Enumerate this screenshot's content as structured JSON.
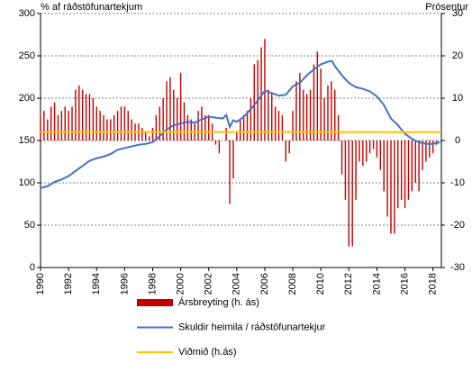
{
  "chart_data": {
    "type": "bar_line_dual",
    "y_label": "% af ráðstöfunartekjum",
    "y2_label": "Prósentur",
    "xlim": [
      1990,
      2018.6
    ],
    "xticks": [
      1990,
      1992,
      1994,
      1996,
      1998,
      2000,
      2002,
      2004,
      2006,
      2008,
      2010,
      2012,
      2014,
      2016,
      2018
    ],
    "ylim": [
      0,
      300
    ],
    "yticks": [
      0,
      50,
      100,
      150,
      200,
      250,
      300
    ],
    "y2lim": [
      -30,
      30
    ],
    "y2ticks": [
      -30,
      -20,
      -10,
      0,
      10,
      20,
      30
    ],
    "grid": true,
    "series": [
      {
        "name": "Ársbreyting (h. ás)",
        "type": "bar",
        "axis": "y2",
        "color": "#c00000",
        "x": [
          1990,
          1990.25,
          1990.5,
          1990.75,
          1991,
          1991.25,
          1991.5,
          1991.75,
          1992,
          1992.25,
          1992.5,
          1992.75,
          1993,
          1993.25,
          1993.5,
          1993.75,
          1994,
          1994.25,
          1994.5,
          1994.75,
          1995,
          1995.25,
          1995.5,
          1995.75,
          1996,
          1996.25,
          1996.5,
          1996.75,
          1997,
          1997.25,
          1997.5,
          1997.75,
          1998,
          1998.25,
          1998.5,
          1998.75,
          1999,
          1999.25,
          1999.5,
          1999.75,
          2000,
          2000.25,
          2000.5,
          2000.75,
          2001,
          2001.25,
          2001.5,
          2001.75,
          2002,
          2002.25,
          2002.5,
          2002.75,
          2003,
          2003.25,
          2003.5,
          2003.75,
          2004,
          2004.25,
          2004.5,
          2004.75,
          2005,
          2005.25,
          2005.5,
          2005.75,
          2006,
          2006.25,
          2006.5,
          2006.75,
          2007,
          2007.25,
          2007.5,
          2007.75,
          2008,
          2008.25,
          2008.5,
          2008.75,
          2009,
          2009.25,
          2009.5,
          2009.75,
          2010,
          2010.25,
          2010.5,
          2010.75,
          2011,
          2011.25,
          2011.5,
          2011.75,
          2012,
          2012.25,
          2012.5,
          2012.75,
          2013,
          2013.25,
          2013.5,
          2013.75,
          2014,
          2014.25,
          2014.5,
          2014.75,
          2015,
          2015.25,
          2015.5,
          2015.75,
          2016,
          2016.25,
          2016.5,
          2016.75,
          2017,
          2017.25,
          2017.5,
          2017.75,
          2018,
          2018.25
        ],
        "values": [
          6,
          7,
          5,
          8,
          9,
          6,
          7,
          8,
          7,
          8,
          12,
          13,
          12,
          11,
          11,
          10,
          8,
          7,
          6,
          5,
          5,
          6,
          7,
          8,
          8,
          7,
          5,
          4,
          4,
          3,
          2,
          1,
          3,
          6,
          8,
          10,
          14,
          15,
          12,
          10,
          16,
          9,
          6,
          5,
          4,
          7,
          8,
          6,
          6,
          4,
          -1,
          -3,
          0,
          3,
          -15,
          -9,
          2,
          5,
          6,
          7,
          10,
          18,
          19,
          22,
          24,
          12,
          11,
          8,
          7,
          6,
          -5,
          -3,
          7,
          14,
          16,
          12,
          11,
          12,
          18,
          21,
          17,
          10,
          13,
          14,
          12,
          6,
          -8,
          -14,
          -25,
          -25,
          -14,
          -5,
          -6,
          -5,
          -3,
          -2,
          -4,
          -7,
          -12,
          -18,
          -22,
          -22,
          -16,
          -14,
          -16,
          -14,
          -12,
          -10,
          -12,
          -7,
          -5,
          -4,
          -3,
          -1
        ]
      },
      {
        "name": "Skuldir heimila / ráðstöfunartekjur",
        "type": "line",
        "axis": "y",
        "color": "#4472c4",
        "x": [
          1990,
          1990.5,
          1991,
          1991.5,
          1992,
          1992.5,
          1993,
          1993.5,
          1994,
          1994.5,
          1995,
          1995.5,
          1996,
          1996.5,
          1997,
          1997.5,
          1998,
          1998.5,
          1999,
          1999.5,
          2000,
          2000.5,
          2001,
          2001.5,
          2002,
          2002.5,
          2003,
          2003.25,
          2003.5,
          2003.75,
          2004,
          2004.5,
          2005,
          2005.5,
          2006,
          2006.5,
          2007,
          2007.5,
          2008,
          2008.5,
          2009,
          2009.5,
          2010,
          2010.5,
          2010.8,
          2011,
          2011.5,
          2012,
          2012.5,
          2013,
          2013.5,
          2014,
          2014.5,
          2015,
          2015.5,
          2016,
          2016.5,
          2017,
          2017.5,
          2018,
          2018.5
        ],
        "values": [
          94,
          96,
          101,
          104,
          108,
          114,
          120,
          126,
          129,
          131,
          134,
          139,
          141,
          143,
          145,
          146,
          148,
          155,
          163,
          168,
          170,
          172,
          171,
          175,
          178,
          177,
          176,
          180,
          166,
          174,
          172,
          178,
          187,
          197,
          209,
          206,
          203,
          204,
          214,
          218,
          227,
          234,
          240,
          243,
          244,
          238,
          227,
          218,
          213,
          211,
          208,
          202,
          192,
          176,
          168,
          158,
          152,
          148,
          146,
          146,
          148
        ]
      },
      {
        "name": "Viðmið (h.ás)",
        "type": "hline",
        "axis": "y2",
        "color": "#ffc000",
        "value": 2
      }
    ]
  }
}
